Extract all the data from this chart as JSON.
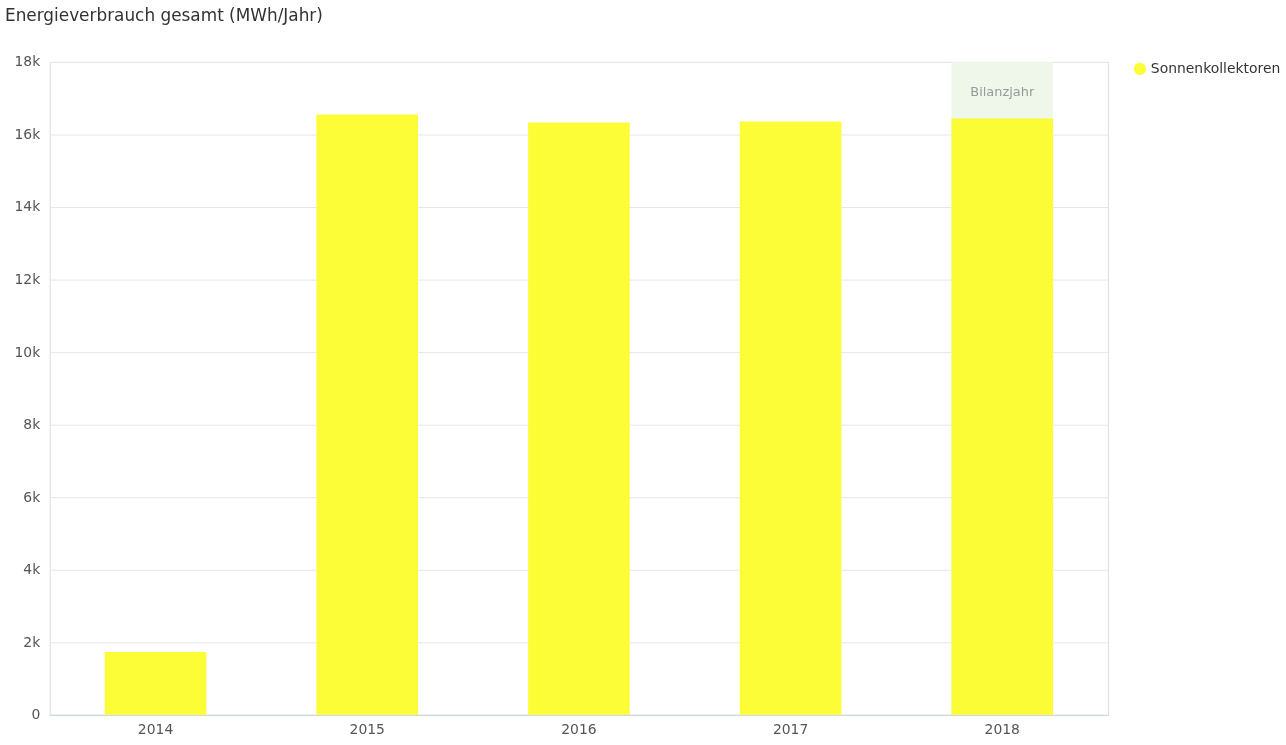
{
  "chart_data": {
    "type": "bar",
    "title": "Energieverbrauch gesamt (MWh/Jahr)",
    "categories": [
      "2014",
      "2015",
      "2016",
      "2017",
      "2018"
    ],
    "series": [
      {
        "name": "Sonnenkollektoren",
        "color": "#fcfc2c",
        "values": [
          1730,
          16550,
          16330,
          16360,
          16440
        ]
      }
    ],
    "ylim": [
      0,
      18000
    ],
    "yticks": [
      0,
      {
        "value": 2000,
        "label": "2k"
      },
      {
        "value": 4000,
        "label": "4k"
      },
      {
        "value": 6000,
        "label": "6k"
      },
      {
        "value": 8000,
        "label": "8k"
      },
      {
        "value": 10000,
        "label": "10k"
      },
      {
        "value": 12000,
        "label": "12k"
      },
      {
        "value": 14000,
        "label": "14k"
      },
      {
        "value": 16000,
        "label": "16k"
      },
      {
        "value": 18000,
        "label": "18k"
      }
    ],
    "bands": [
      {
        "axis": "x",
        "from": "2018",
        "to": "2018",
        "label": "Bilanzjahr",
        "color": "#eef7ea"
      }
    ],
    "grid": "y",
    "legend": "top right"
  }
}
